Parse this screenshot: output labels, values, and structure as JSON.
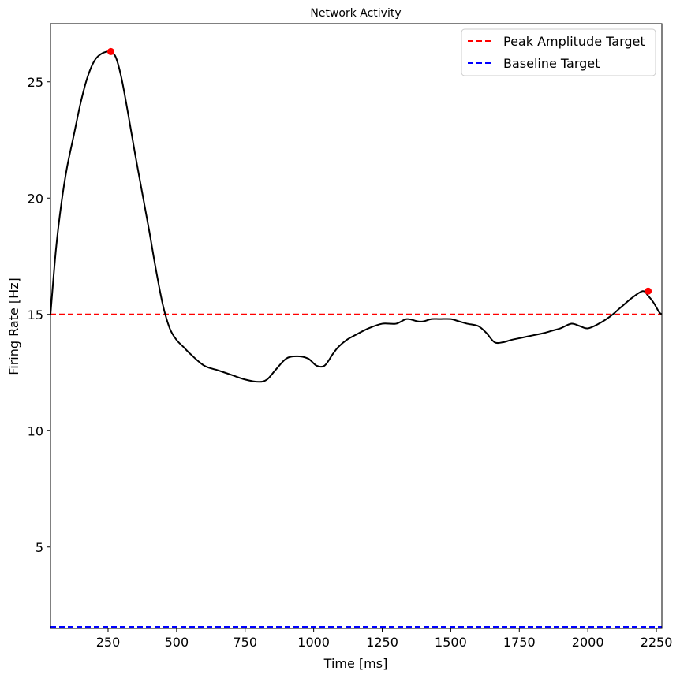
{
  "chart_data": {
    "type": "line",
    "title": "Network Activity",
    "xlabel": "Time [ms]",
    "ylabel": "Firing Rate [Hz]",
    "xlim": [
      40,
      2270
    ],
    "ylim": [
      1.5,
      27.5
    ],
    "xticks": [
      250,
      500,
      750,
      1000,
      1250,
      1500,
      1750,
      2000,
      2250
    ],
    "yticks": [
      5,
      10,
      15,
      20,
      25
    ],
    "grid": false,
    "legend_position": "top-right",
    "series": [
      {
        "color": "#000000",
        "x": [
          40,
          60,
          80,
          100,
          125,
          150,
          175,
          200,
          225,
          250,
          265,
          280,
          300,
          325,
          350,
          375,
          400,
          425,
          450,
          475,
          500,
          525,
          550,
          600,
          650,
          700,
          750,
          800,
          830,
          860,
          900,
          940,
          980,
          1010,
          1040,
          1070,
          1090,
          1120,
          1150,
          1200,
          1250,
          1300,
          1340,
          1380,
          1400,
          1430,
          1460,
          1500,
          1530,
          1560,
          1600,
          1630,
          1660,
          1690,
          1720,
          1760,
          1800,
          1840,
          1870,
          1900,
          1940,
          1970,
          2000,
          2040,
          2080,
          2120,
          2160,
          2200,
          2220,
          2240,
          2260,
          2270
        ],
        "y": [
          15.0,
          17.8,
          19.8,
          21.3,
          22.7,
          24.1,
          25.2,
          25.9,
          26.2,
          26.3,
          26.25,
          26.0,
          25.1,
          23.5,
          21.8,
          20.2,
          18.6,
          16.9,
          15.4,
          14.4,
          13.9,
          13.6,
          13.3,
          12.8,
          12.6,
          12.4,
          12.2,
          12.1,
          12.2,
          12.6,
          13.1,
          13.2,
          13.1,
          12.8,
          12.8,
          13.3,
          13.6,
          13.9,
          14.1,
          14.4,
          14.6,
          14.6,
          14.8,
          14.7,
          14.7,
          14.8,
          14.8,
          14.8,
          14.7,
          14.6,
          14.5,
          14.2,
          13.8,
          13.8,
          13.9,
          14.0,
          14.1,
          14.2,
          14.3,
          14.4,
          14.6,
          14.5,
          14.4,
          14.6,
          14.9,
          15.3,
          15.7,
          16.0,
          15.8,
          15.5,
          15.1,
          15.0
        ]
      }
    ],
    "peaks": {
      "color": "#ff0000",
      "x": [
        260,
        2220
      ],
      "y": [
        26.3,
        16.0
      ]
    },
    "reference_lines": [
      {
        "name": "Peak Amplitude Target",
        "y": 15.0,
        "color": "#ff0000",
        "style": "dashed"
      },
      {
        "name": "Baseline Target",
        "y": 1.5,
        "color": "#0000ff",
        "style": "dashed"
      }
    ]
  }
}
